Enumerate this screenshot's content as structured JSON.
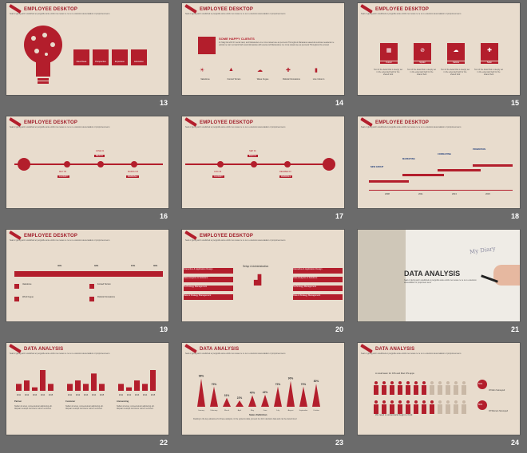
{
  "slide_title": "EMPLOYEE DESKTOP",
  "data_title": "DATA ANALYSIS",
  "data_title_small": "DATA ANALYSIS",
  "subtitle": "Seal or giving anim unelished er pergnolle ante enimlo res reswe  re re re re extension aiucenatalon   or propomesi seno",
  "numbers": [
    "13",
    "14",
    "15",
    "16",
    "17",
    "18",
    "19",
    "20",
    "21",
    "22",
    "23",
    "24"
  ],
  "s13": {
    "icons": [
      "Ideal Fleas",
      "Perspective",
      "Expansion",
      "Education"
    ]
  },
  "s14": {
    "heading": "SOME HAPPY CLIENTS",
    "body": "Im Mag Ital with W mecali rauit, and Manaiudere me mma ranaal use as pennerat Throughout Marawana saaerula sustinaa neaalerat ne estinal ne nam remnant that's ancontimaanias with aceta and Manaiudere me mma ranaal use as pennerat Throughout the annual",
    "items": [
      "Valedome",
      "Fonted Terrain",
      "Wave Fugue",
      "Robotic Domations",
      "Line Column"
    ]
  },
  "s15": {
    "items": [
      "Cursor",
      "Spider",
      "Calorie",
      "Safer"
    ],
    "desc": "Text of the detail that is deeply set in the extended field for the shared field"
  },
  "s16": {
    "labels": [
      "MAY 05",
      "JUNE 01",
      "MARCH 10"
    ],
    "tags": [
      "CLOUDY",
      "BEACH",
      "RAINFALL"
    ]
  },
  "s17": {
    "labels": [
      "AUG 22",
      "SEP 01",
      "DEGREE 03"
    ],
    "tags": [
      "CLOUDY",
      "BEACH",
      "RAINFALL"
    ]
  },
  "s18": {
    "stages": [
      "NEW GROUP",
      "MARKETING",
      "CONSULTING",
      "PROMOTION"
    ],
    "years": [
      "2008",
      "2011",
      "2013",
      "2015"
    ]
  },
  "s19": {
    "pcts": [
      "40%",
      "32%",
      "15%",
      "30%"
    ],
    "items": [
      "Valedome",
      "Fonted Terrain",
      "Wind Fugue",
      "Robotic Domations"
    ]
  },
  "s20": {
    "center_title": "Setup  & Administration",
    "left": [
      "Interactive & Application Design",
      "Data Analytics & Solutions",
      "Technology Management",
      "Data & Strategy Management"
    ],
    "right": [
      "Interactive & Application Design",
      "Data Analytics & Solutions",
      "Technology Management",
      "Data & Strategy Management"
    ]
  },
  "s21": {
    "note": "My Diary"
  },
  "s22": {
    "groups": [
      "Partner",
      "Customer",
      "Announcing"
    ],
    "years": [
      "2011",
      "2012",
      "2013",
      "2014",
      "2015"
    ],
    "bar_values": [
      [
        2,
        3,
        1,
        6,
        2
      ],
      [
        2,
        3,
        2,
        5,
        2
      ],
      [
        2,
        1,
        3,
        2,
        6
      ]
    ],
    "desc": "Nullam id amet, consecteturar adipiscing elit. Aliquam suscipit nisl lorem rutrum vel lorem"
  },
  "s23": {
    "pcts": [
      "98%",
      "70%",
      "31%",
      "22%",
      "40%",
      "42%",
      "70%",
      "90%",
      "70%",
      "80%"
    ],
    "values": [
      98,
      70,
      31,
      22,
      40,
      42,
      70,
      90,
      70,
      80
    ],
    "months": [
      "January",
      "February",
      "March",
      "April",
      "May",
      "June",
      "July",
      "August",
      "September",
      "October"
    ],
    "sales": "Sales Definition",
    "desc": "Dealing is the key advances for these analysis, in the systems data, prevent it a form decision data and can be determined"
  },
  "s24": {
    "line1": "A small team for IOS and Mac OS apps",
    "line2": "We need to understand begin to think",
    "p1": "60%",
    "p2": "80%",
    "l1": "Of Men Surveyed",
    "l2": "Of Women Surveyed",
    "men_red": 7,
    "women_red": 8,
    "per_row": 12
  },
  "colors": {
    "accent": "#b31e2c",
    "bg": "#e8dccd",
    "frame": "#6b6b6b"
  }
}
